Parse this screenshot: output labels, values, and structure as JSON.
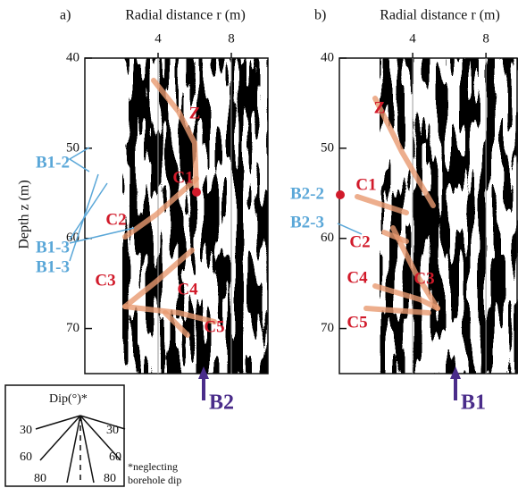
{
  "figure": {
    "ylabel": "Depth z (m)",
    "panels": [
      {
        "label": "a)",
        "xlabel": "Radial distance r (m)",
        "xlim": [
          0,
          10
        ],
        "ylim": [
          40,
          75
        ],
        "xticks": [
          4,
          8
        ],
        "yticks": [
          40,
          50,
          60,
          70
        ],
        "reflectors": [
          "Z",
          "C1",
          "C2",
          "C3",
          "C4",
          "C5"
        ],
        "picks": [
          "B1-2",
          "B1-3",
          "B1-3"
        ],
        "borehole": "B2"
      },
      {
        "label": "b)",
        "xlabel": "Radial distance r (m)",
        "xlim": [
          0,
          9.7
        ],
        "ylim": [
          40,
          75
        ],
        "xticks": [
          4,
          8
        ],
        "yticks": [
          40,
          50,
          60,
          70
        ],
        "reflectors": [
          "Z",
          "C1",
          "C2",
          "C3",
          "C4",
          "C5"
        ],
        "picks": [
          "B2-2",
          "B2-3"
        ],
        "borehole": "B1"
      }
    ],
    "legend": {
      "title": "Dip(°)*",
      "angles": [
        30,
        30,
        60,
        60,
        80,
        80
      ],
      "note": [
        "*neglecting",
        "borehole dip"
      ]
    }
  }
}
